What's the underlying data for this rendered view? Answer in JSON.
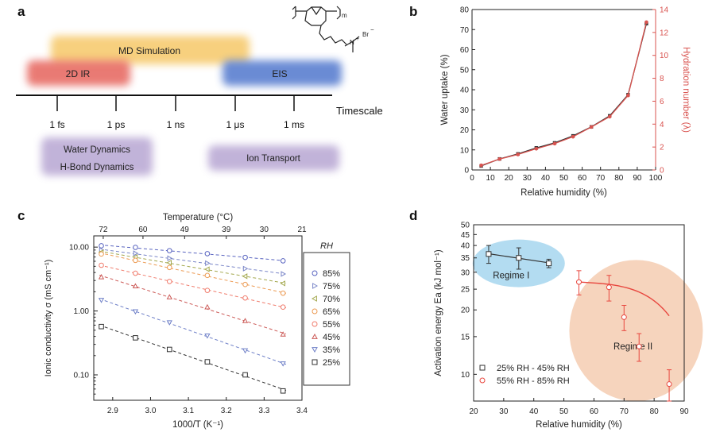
{
  "panel_labels": {
    "a": "a",
    "b": "b",
    "c": "c",
    "d": "d"
  },
  "panel_a": {
    "timescale_label": "Timescale",
    "ticks": [
      "1 fs",
      "1 ps",
      "1 ns",
      "1 μs",
      "1 ms"
    ],
    "techniques": {
      "md": "MD Simulation",
      "ir": "2D IR",
      "eis": "EIS"
    },
    "phenomena": {
      "water": "Water Dynamics",
      "hbond": "H-Bond Dynamics",
      "ion": "Ion Transport"
    },
    "structure": {
      "m": "m",
      "br": "Br",
      "charge_minus": "−",
      "charge_plus": "+",
      "n": "N"
    },
    "colors": {
      "md": "#f6c867",
      "ir": "#e6635c",
      "eis": "#5a7fd0",
      "phenomena": "#b7a6d3"
    }
  },
  "chart_data": [
    {
      "type": "line",
      "panel": "b",
      "title": "",
      "xlabel": "Relative humidity (%)",
      "ylabel": "Water uptake (%)",
      "y2label": "Hydration number (λ)",
      "xlim": [
        0,
        100
      ],
      "ylim": [
        0,
        80
      ],
      "y2lim": [
        0,
        14
      ],
      "xticks": [
        0,
        10,
        20,
        30,
        40,
        50,
        60,
        70,
        80,
        90,
        100
      ],
      "yticks": [
        0,
        10,
        20,
        30,
        40,
        50,
        60,
        70,
        80
      ],
      "y2ticks": [
        0,
        2,
        4,
        6,
        8,
        10,
        12,
        14
      ],
      "series": [
        {
          "name": "Water uptake",
          "axis": "left",
          "color": "#333333",
          "x": [
            5,
            15,
            25,
            35,
            45,
            55,
            65,
            75,
            85,
            95
          ],
          "values": [
            2,
            5.5,
            8,
            11,
            13.5,
            17,
            21.5,
            27,
            37.5,
            73
          ]
        },
        {
          "name": "Hydration number",
          "axis": "right",
          "color": "#d9534f",
          "x": [
            5,
            15,
            25,
            35,
            45,
            55,
            65,
            75,
            85,
            95
          ],
          "values": [
            0.4,
            0.95,
            1.35,
            1.85,
            2.3,
            2.9,
            3.75,
            4.65,
            6.5,
            12.9
          ]
        }
      ]
    },
    {
      "type": "scatter",
      "panel": "c",
      "title": "",
      "xlabel": "1000/T (K⁻¹)",
      "top_xlabel": "Temperature (°C)",
      "ylabel": "Ionic conductivity σ (mS cm⁻¹)",
      "xlim": [
        2.85,
        3.4
      ],
      "ylim": [
        0.04,
        15
      ],
      "yscale": "log",
      "xticks": [
        "2.9",
        "3.0",
        "3.1",
        "3.2",
        "3.3",
        "3.4"
      ],
      "yticks": [
        "10.00",
        "1.00",
        "0.10"
      ],
      "top_ticks": [
        "72",
        "60",
        "49",
        "39",
        "30",
        "21"
      ],
      "legend_title": "RH",
      "x": [
        2.87,
        2.96,
        3.05,
        3.15,
        3.25,
        3.35
      ],
      "series": [
        {
          "name": "85%",
          "marker": "circle",
          "color": "#5964c0",
          "values": [
            10.5,
            9.9,
            8.8,
            7.9,
            6.9,
            6.1
          ]
        },
        {
          "name": "75%",
          "marker": "tri-right",
          "color": "#7a86c8",
          "values": [
            9.0,
            8.0,
            6.7,
            5.6,
            4.6,
            3.8
          ]
        },
        {
          "name": "70%",
          "marker": "tri-left",
          "color": "#a3a84e",
          "values": [
            8.3,
            7.0,
            5.7,
            4.5,
            3.5,
            2.7
          ]
        },
        {
          "name": "65%",
          "marker": "circle",
          "color": "#ec9a52",
          "values": [
            7.8,
            6.2,
            4.8,
            3.6,
            2.6,
            1.9
          ]
        },
        {
          "name": "55%",
          "marker": "circle",
          "color": "#f07c6d",
          "values": [
            5.2,
            3.9,
            2.9,
            2.1,
            1.6,
            1.15
          ]
        },
        {
          "name": "45%",
          "marker": "tri-up",
          "color": "#cc5a57",
          "values": [
            3.4,
            2.45,
            1.65,
            1.15,
            0.7,
            0.43
          ]
        },
        {
          "name": "35%",
          "marker": "tri-down",
          "color": "#6f80c8",
          "values": [
            1.48,
            0.98,
            0.66,
            0.41,
            0.24,
            0.15
          ]
        },
        {
          "name": "25%",
          "marker": "square",
          "color": "#333333",
          "values": [
            0.57,
            0.38,
            0.25,
            0.16,
            0.1,
            0.056
          ]
        }
      ]
    },
    {
      "type": "scatter",
      "panel": "d",
      "title": "",
      "xlabel": "Relative humidity (%)",
      "ylabel": "Activation energy Ea (kJ mol⁻¹)",
      "xlim": [
        20,
        90
      ],
      "ylim": [
        7.5,
        50
      ],
      "yscale": "log",
      "xticks": [
        20,
        30,
        40,
        50,
        60,
        70,
        80,
        90
      ],
      "yticks": [
        10,
        15,
        20,
        25,
        30,
        35,
        40,
        45,
        50
      ],
      "regions": [
        "Regime I",
        "Regime II"
      ],
      "region_colors": [
        "#a6d6ee",
        "#f4c9ad"
      ],
      "series": [
        {
          "name": "25% RH - 45% RH",
          "marker": "square",
          "color": "#333333",
          "x": [
            25,
            35,
            45
          ],
          "values": [
            36.5,
            35,
            33
          ],
          "errors": [
            3.5,
            4,
            1.5
          ]
        },
        {
          "name": "55% RH - 85% RH",
          "marker": "circle",
          "color": "#e8473f",
          "x": [
            55,
            65,
            70,
            75,
            85
          ],
          "values": [
            27,
            25.5,
            18.5,
            13.5,
            9
          ],
          "errors": [
            3.5,
            3.5,
            2.5,
            2,
            1.5
          ]
        }
      ]
    }
  ]
}
